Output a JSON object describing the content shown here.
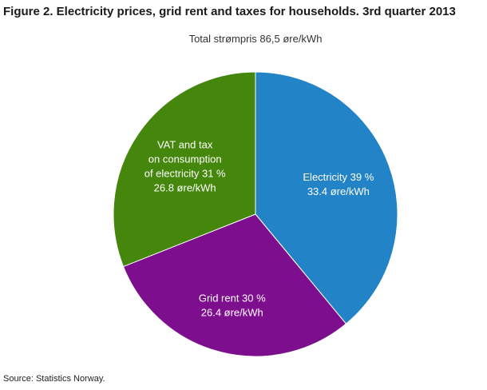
{
  "chart_data": {
    "type": "pie",
    "title": "Figure 2. Electricity prices, grid rent and taxes for households. 3rd quarter 2013",
    "subtitle": "Total strømpris 86,5 øre/kWh",
    "source": "Source: Statistics Norway.",
    "total_ore_per_kwh_text": "86,5",
    "start_angle_deg": 0,
    "direction": "clockwise",
    "label_color": "#ffffff",
    "slices": [
      {
        "name": "Electricity",
        "percent": 39,
        "ore_per_kwh": 33.4,
        "color": "#2283c6",
        "label_lines": [
          "Electricity 39 %",
          "33.4 øre/kWh"
        ],
        "label_radius": 0.62
      },
      {
        "name": "Grid rent",
        "percent": 30,
        "ore_per_kwh": 26.4,
        "color": "#7d0f8e",
        "label_lines": [
          "Grid rent 30 %",
          "26.4 øre/kWh"
        ],
        "label_radius": 0.66
      },
      {
        "name": "VAT and tax on consumption of electricity",
        "percent": 31,
        "ore_per_kwh": 26.8,
        "color": "#45860d",
        "label_lines": [
          "VAT and tax",
          "on consumption",
          "of electricity 31 %",
          "26.8 øre/kWh"
        ],
        "label_radius": 0.6
      }
    ]
  }
}
